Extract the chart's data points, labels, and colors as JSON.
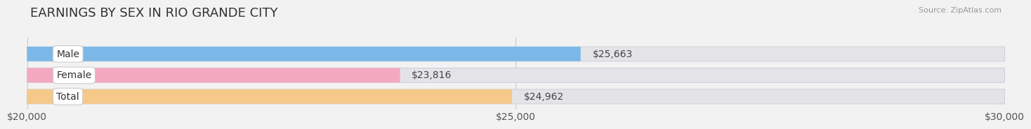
{
  "title": "EARNINGS BY SEX IN RIO GRANDE CITY",
  "source": "Source: ZipAtlas.com",
  "categories": [
    "Male",
    "Female",
    "Total"
  ],
  "values": [
    25663,
    23816,
    24962
  ],
  "bar_colors": [
    "#7bb8e8",
    "#f4a8c0",
    "#f5c98a"
  ],
  "bar_bg_color": "#e4e4e8",
  "value_labels": [
    "$25,663",
    "$23,816",
    "$24,962"
  ],
  "xlim": [
    20000,
    30000
  ],
  "xticks": [
    20000,
    25000,
    30000
  ],
  "xtick_labels": [
    "$20,000",
    "$25,000",
    "$30,000"
  ],
  "title_fontsize": 13,
  "tick_fontsize": 10,
  "bar_label_fontsize": 10,
  "value_fontsize": 10,
  "fig_bg_color": "#f2f2f2",
  "bar_bg_border": "#d0d0d8"
}
